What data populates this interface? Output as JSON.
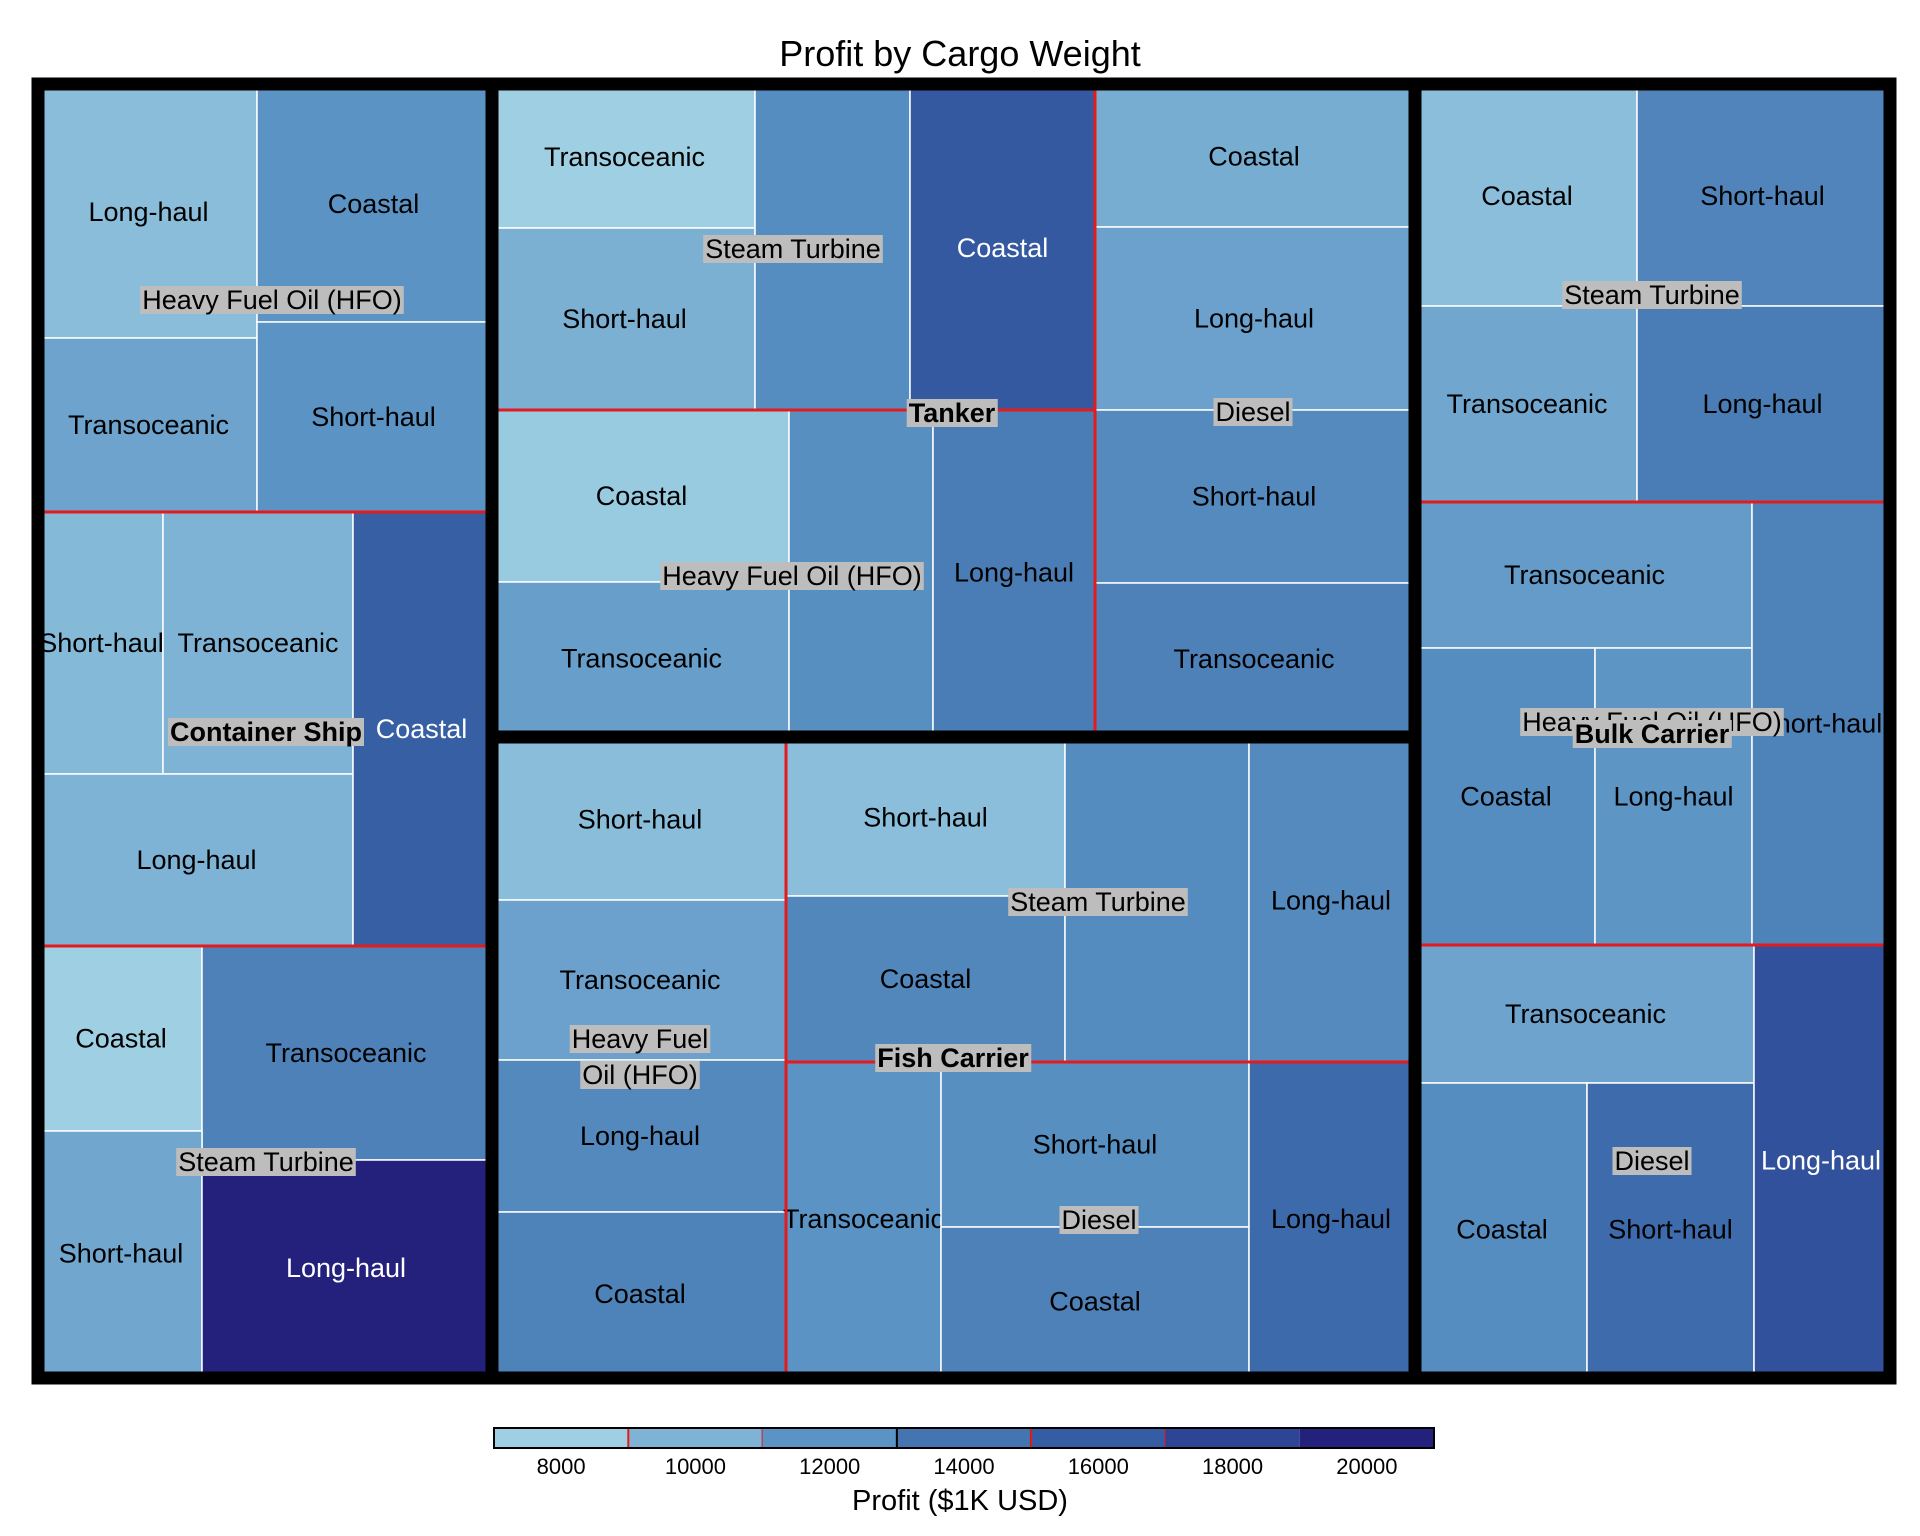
{
  "chart_data": {
    "type": "treemap",
    "title": "Profit by Cargo Weight",
    "colorbar": {
      "label": "Profit ($1K USD)",
      "ticks": [
        8000,
        10000,
        12000,
        14000,
        16000,
        18000,
        20000
      ],
      "colors": [
        "#9ecfe2",
        "#7fb3d5",
        "#5b93c4",
        "#4475b0",
        "#355da3",
        "#2e4595",
        "#24217c"
      ]
    },
    "ship_types": [
      {
        "name": "Container Ship",
        "fuels": [
          {
            "name": "Heavy Fuel Oil (HFO)",
            "routes": [
              {
                "name": "Long-haul",
                "profit": 9300
              },
              {
                "name": "Coastal",
                "profit": 12000
              },
              {
                "name": "Transoceanic",
                "profit": 11000
              },
              {
                "name": "Short-haul",
                "profit": 12000
              }
            ]
          },
          {
            "name": "",
            "routes": [
              {
                "name": "Short-haul",
                "profit": 9600
              },
              {
                "name": "Transoceanic",
                "profit": 10000
              },
              {
                "name": "Long-haul",
                "profit": 10000
              },
              {
                "name": "Coastal",
                "profit": 15800
              }
            ]
          },
          {
            "name": "Steam Turbine",
            "routes": [
              {
                "name": "Coastal",
                "profit": 7700
              },
              {
                "name": "Transoceanic",
                "profit": 13200
              },
              {
                "name": "Short-haul",
                "profit": 10800
              },
              {
                "name": "Long-haul",
                "profit": 20000
              }
            ]
          }
        ]
      },
      {
        "name": "Tanker",
        "fuels": [
          {
            "name": "Steam Turbine",
            "routes": [
              {
                "name": "Transoceanic",
                "profit": 7600
              },
              {
                "name": "Short-haul",
                "profit": 10200
              },
              {
                "name": "",
                "profit": 12400
              },
              {
                "name": "Coastal",
                "profit": 16300
              }
            ]
          },
          {
            "name": "Diesel",
            "routes": [
              {
                "name": "Coastal",
                "profit": 10400
              },
              {
                "name": "Long-haul",
                "profit": 11100
              },
              {
                "name": "Short-haul",
                "profit": 12600
              },
              {
                "name": "Transoceanic",
                "profit": 13200
              }
            ]
          },
          {
            "name": "Heavy Fuel Oil (HFO)",
            "routes": [
              {
                "name": "Coastal",
                "profit": 8300
              },
              {
                "name": "Transoceanic",
                "profit": 11300
              },
              {
                "name": "",
                "profit": 12300
              },
              {
                "name": "Long-haul",
                "profit": 13500
              }
            ]
          }
        ]
      },
      {
        "name": "Fish Carrier",
        "fuels": [
          {
            "name": "Heavy Fuel Oil (HFO)",
            "routes": [
              {
                "name": "Short-haul",
                "profit": 9300
              },
              {
                "name": "Transoceanic",
                "profit": 11100
              },
              {
                "name": "Long-haul",
                "profit": 12700
              },
              {
                "name": "Coastal",
                "profit": 13100
              }
            ]
          },
          {
            "name": "Steam Turbine",
            "routes": [
              {
                "name": "Short-haul",
                "profit": 9200
              },
              {
                "name": "Coastal",
                "profit": 12800
              },
              {
                "name": "",
                "profit": 12500
              },
              {
                "name": "Long-haul",
                "profit": 12600
              }
            ]
          },
          {
            "name": "Diesel",
            "routes": [
              {
                "name": "Transoceanic",
                "profit": 12000
              },
              {
                "name": "Short-haul",
                "profit": 12300
              },
              {
                "name": "Coastal",
                "profit": 13200
              },
              {
                "name": "Long-haul",
                "profit": 14900
              }
            ]
          }
        ]
      },
      {
        "name": "Bulk Carrier",
        "fuels": [
          {
            "name": "Steam Turbine",
            "routes": [
              {
                "name": "Coastal",
                "profit": 9200
              },
              {
                "name": "Short-haul",
                "profit": 13000
              },
              {
                "name": "Transoceanic",
                "profit": 10800
              },
              {
                "name": "Long-haul",
                "profit": 13500
              }
            ]
          },
          {
            "name": "Heavy Fuel Oil (HFO)",
            "routes": [
              {
                "name": "Transoceanic",
                "profit": 11500
              },
              {
                "name": "Coastal",
                "profit": 12400
              },
              {
                "name": "Long-haul",
                "profit": 11900
              },
              {
                "name": "Short-haul",
                "profit": 13100
              }
            ]
          },
          {
            "name": "Diesel",
            "routes": [
              {
                "name": "Transoceanic",
                "profit": 11000
              },
              {
                "name": "Coastal",
                "profit": 12400
              },
              {
                "name": "Short-haul",
                "profit": 14800
              },
              {
                "name": "Long-haul",
                "profit": 17000
              }
            ]
          }
        ]
      }
    ]
  }
}
